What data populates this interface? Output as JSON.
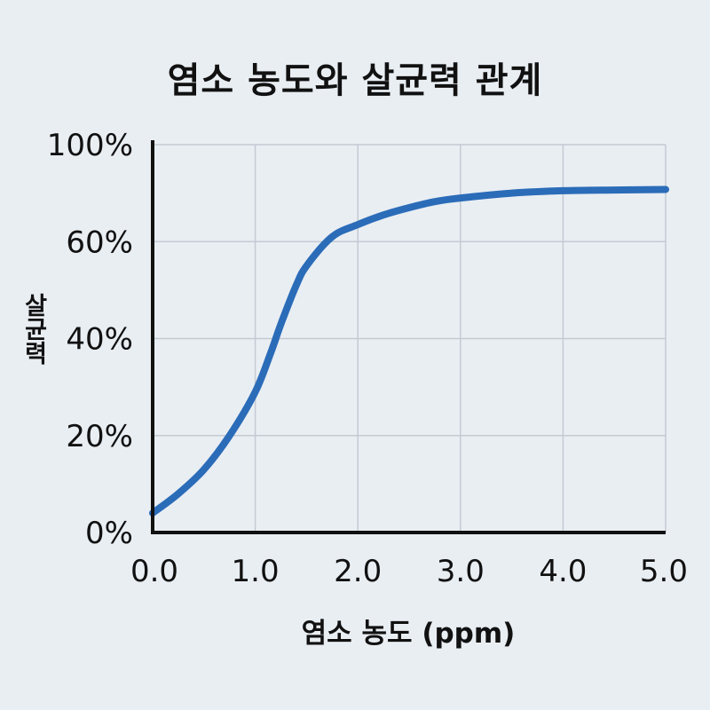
{
  "chart_data": {
    "type": "line",
    "title": "염소 농도와 살균력 관계",
    "xlabel": "염소 농도 (ppm)",
    "ylabel": "살균력",
    "xlim": [
      0,
      5
    ],
    "ylim": [
      0,
      100
    ],
    "x_ticks": [
      "0.0",
      "1.0",
      "2.0",
      "3.0",
      "4.0",
      "5.0"
    ],
    "y_ticks": [
      "0%",
      "20%",
      "40%",
      "60%",
      "100%"
    ],
    "grid": true,
    "line_color": "#2b6cb8",
    "series": [
      {
        "x": [
          0.0,
          0.25,
          0.5,
          0.75,
          1.0,
          1.15,
          1.25,
          1.4,
          1.5,
          1.75,
          2.0,
          2.25,
          2.5,
          2.75,
          3.0,
          3.5,
          4.0,
          4.5,
          5.0
        ],
        "y": [
          4,
          8,
          13,
          20,
          29,
          37,
          43,
          51,
          55,
          62,
          67,
          71,
          74,
          76.5,
          78,
          80,
          81,
          81.3,
          81.5
        ]
      }
    ]
  }
}
